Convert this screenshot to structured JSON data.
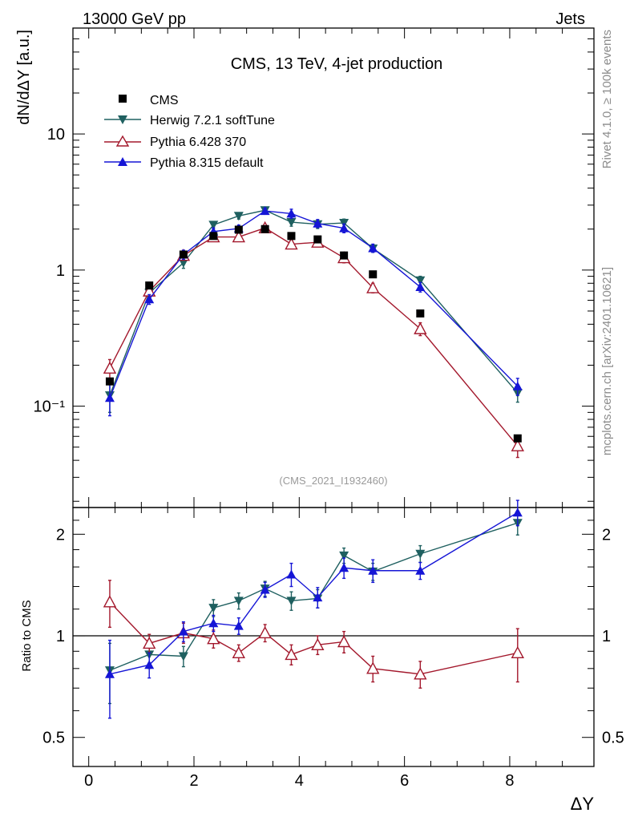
{
  "header": {
    "left": "13000 GeV pp",
    "right": "Jets"
  },
  "side": {
    "rivet": "Rivet 4.1.0, ≥ 100k events",
    "site": "mcplots.cern.ch [arXiv:2401.10621]"
  },
  "chart_data": {
    "type": "line",
    "title": "CMS, 13 TeV, 4-jet production",
    "analysis_tag": "(CMS_2021_I1932460)",
    "xlabel": "ΔY",
    "ylabel": "dN/dΔY [a.u.]",
    "ratio_ylabel": "Ratio to CMS",
    "xlim": [
      -0.3,
      9.6
    ],
    "ylim": [
      0.018,
      60
    ],
    "yscale": "log",
    "ratio_ylim": [
      0.41,
      2.4
    ],
    "ratio_yscale": "log",
    "x_ticks": [
      "0",
      "2",
      "4",
      "6",
      "8"
    ],
    "y_ticks": [
      "10⁻¹",
      "1",
      "10"
    ],
    "ratio_ticks": [
      "0.5",
      "1",
      "2"
    ],
    "reference_line": 1,
    "x": [
      0.4,
      1.15,
      1.8,
      2.37,
      2.85,
      3.35,
      3.85,
      4.35,
      4.85,
      5.4,
      6.3,
      8.15
    ],
    "colors": {
      "data": "#000000",
      "herwig": "#1f6060",
      "pythia6": "#a3182c",
      "pythia8": "#1515d6"
    },
    "data": {
      "name": "CMS",
      "values": [
        0.152,
        0.77,
        1.3,
        1.78,
        1.98,
        2.0,
        1.78,
        1.68,
        1.28,
        0.93,
        0.48,
        0.058
      ]
    },
    "series": [
      {
        "key": "herwig",
        "name": "Herwig 7.2.1 softTune",
        "marker": "triangle-down",
        "values": [
          0.12,
          0.68,
          1.13,
          2.15,
          2.5,
          2.75,
          2.25,
          2.17,
          2.22,
          1.44,
          0.84,
          0.125
        ],
        "errors": [
          0.03,
          0.06,
          0.1,
          0.12,
          0.13,
          0.12,
          0.15,
          0.15,
          0.15,
          0.09,
          0.06,
          0.018
        ],
        "ratio": [
          0.79,
          0.88,
          0.87,
          1.21,
          1.27,
          1.38,
          1.27,
          1.29,
          1.73,
          1.55,
          1.75,
          2.16
        ],
        "ratio_errors": [
          0.16,
          0.08,
          0.06,
          0.07,
          0.07,
          0.07,
          0.08,
          0.08,
          0.09,
          0.09,
          0.1,
          0.17
        ]
      },
      {
        "key": "pythia6",
        "name": "Pythia 6.428 370",
        "marker": "triangle-open",
        "values": [
          0.19,
          0.7,
          1.28,
          1.75,
          1.75,
          2.04,
          1.55,
          1.6,
          1.23,
          0.74,
          0.37,
          0.051
        ],
        "errors": [
          0.03,
          0.05,
          0.08,
          0.1,
          0.1,
          0.11,
          0.1,
          0.1,
          0.1,
          0.06,
          0.04,
          0.009
        ],
        "ratio": [
          1.26,
          0.95,
          1.02,
          0.98,
          0.89,
          1.02,
          0.88,
          0.94,
          0.96,
          0.8,
          0.77,
          0.89
        ],
        "ratio_errors": [
          0.2,
          0.06,
          0.07,
          0.06,
          0.05,
          0.06,
          0.06,
          0.06,
          0.07,
          0.07,
          0.07,
          0.16
        ]
      },
      {
        "key": "pythia8",
        "name": "Pythia 8.315 default",
        "marker": "triangle-up",
        "values": [
          0.115,
          0.61,
          1.3,
          1.92,
          2.02,
          2.72,
          2.6,
          2.2,
          2.03,
          1.45,
          0.75,
          0.14
        ],
        "errors": [
          0.03,
          0.05,
          0.1,
          0.12,
          0.12,
          0.13,
          0.2,
          0.15,
          0.15,
          0.1,
          0.06,
          0.02
        ],
        "ratio": [
          0.77,
          0.82,
          1.03,
          1.09,
          1.07,
          1.37,
          1.52,
          1.3,
          1.59,
          1.56,
          1.56,
          2.32
        ],
        "ratio_errors": [
          0.2,
          0.07,
          0.07,
          0.06,
          0.06,
          0.07,
          0.12,
          0.09,
          0.11,
          0.12,
          0.09,
          0.2
        ]
      }
    ]
  }
}
